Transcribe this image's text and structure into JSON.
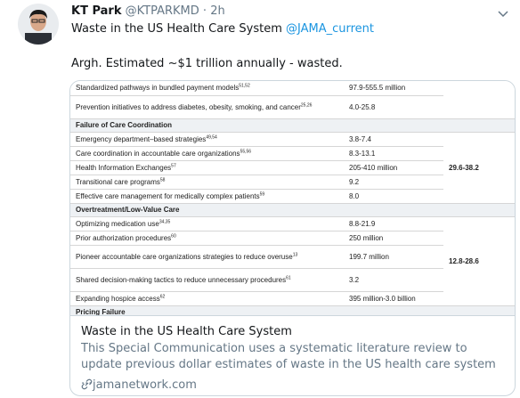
{
  "tweet": {
    "name": "KT Park",
    "handle": "@KTPARKMD",
    "separator": "·",
    "time": "2h",
    "text": "Waste in the US Health Care System",
    "mention": "@JAMA_current",
    "comment": "Argh. Estimated ~$1 trillion annually - wasted."
  },
  "table": {
    "leading_rows": [
      {
        "label": "Standardized pathways in bundled payment models",
        "ref": "51,52",
        "value": "97.9-555.5 million"
      },
      {
        "label": "Prevention initiatives to address diabetes, obesity, smoking, and cancer",
        "ref": "25,26",
        "value": "4.0-25.8"
      }
    ],
    "sections": [
      {
        "title": "Failure of Care Coordination",
        "total": "29.6-38.2",
        "rows": [
          {
            "label": "Emergency department–based strategies",
            "ref": "49,54",
            "value": "3.8-7.4"
          },
          {
            "label": "Care coordination in accountable care organizations",
            "ref": "55,56",
            "value": "8.3-13.1"
          },
          {
            "label": "Health Information Exchanges",
            "ref": "57",
            "value": "205-410 million"
          },
          {
            "label": "Transitional care programs",
            "ref": "58",
            "value": "9.2"
          },
          {
            "label": "Effective care management for medically complex patients",
            "ref": "59",
            "value": "8.0"
          }
        ]
      },
      {
        "title": "Overtreatment/Low-Value Care",
        "total": "12.8-28.6",
        "rows": [
          {
            "label": "Optimizing medication use",
            "ref": "34,35",
            "value": "8.8-21.9"
          },
          {
            "label": "Prior authorization procedures",
            "ref": "60",
            "value": "250 million"
          },
          {
            "label": "Pioneer accountable care organizations strategies to reduce overuse",
            "ref": "13",
            "value": "199.7 million"
          },
          {
            "label": "Shared decision-making tactics to reduce unnecessary procedures",
            "ref": "61",
            "value": "3.2"
          },
          {
            "label": "Expanding hospice access",
            "ref": "62",
            "value": "395 million-3.0 billion"
          }
        ]
      },
      {
        "title": "Pricing Failure",
        "rows": []
      }
    ]
  },
  "card": {
    "title": "Waste in the US Health Care System",
    "description": "This Special Communication uses a systematic literature review to update previous dollar estimates of waste in the US health care system ...",
    "domain": "jamanetwork.com"
  }
}
